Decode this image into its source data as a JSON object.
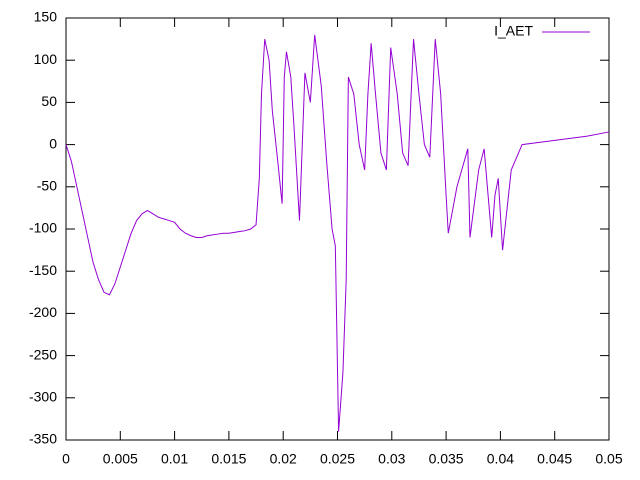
{
  "chart_data": {
    "type": "line",
    "series": [
      {
        "name": "I_AET",
        "color": "#9400d3",
        "x": [
          0,
          0.0005,
          0.001,
          0.0015,
          0.002,
          0.0025,
          0.003,
          0.0035,
          0.004,
          0.0045,
          0.005,
          0.0055,
          0.006,
          0.0065,
          0.007,
          0.0075,
          0.008,
          0.0085,
          0.009,
          0.0095,
          0.01,
          0.0105,
          0.011,
          0.0115,
          0.012,
          0.0125,
          0.013,
          0.0135,
          0.014,
          0.0145,
          0.015,
          0.0155,
          0.016,
          0.0165,
          0.017,
          0.0175,
          0.0178,
          0.018,
          0.0183,
          0.0187,
          0.019,
          0.0195,
          0.0199,
          0.0201,
          0.0203,
          0.0207,
          0.021,
          0.0215,
          0.022,
          0.0225,
          0.0229,
          0.0235,
          0.024,
          0.0245,
          0.0248,
          0.0251,
          0.0255,
          0.0258,
          0.026,
          0.0265,
          0.027,
          0.0275,
          0.0278,
          0.0281,
          0.0285,
          0.029,
          0.0295,
          0.0299,
          0.0305,
          0.031,
          0.0315,
          0.032,
          0.0325,
          0.033,
          0.0335,
          0.034,
          0.0345,
          0.035,
          0.0352,
          0.036,
          0.037,
          0.0372,
          0.038,
          0.0385,
          0.0392,
          0.0395,
          0.0398,
          0.0402,
          0.041,
          0.042,
          0.045,
          0.048,
          0.05
        ],
        "values": [
          0,
          -20,
          -50,
          -80,
          -110,
          -140,
          -160,
          -175,
          -178,
          -165,
          -145,
          -125,
          -105,
          -90,
          -82,
          -78,
          -82,
          -86,
          -88,
          -90,
          -92,
          -100,
          -105,
          -108,
          -110,
          -110,
          -108,
          -107,
          -106,
          -105,
          -105,
          -104,
          -103,
          -102,
          -100,
          -95,
          -40,
          60,
          125,
          100,
          40,
          -20,
          -70,
          80,
          110,
          80,
          20,
          -90,
          85,
          50,
          130,
          70,
          -20,
          -100,
          -120,
          -340,
          -270,
          -160,
          80,
          60,
          0,
          -30,
          60,
          120,
          60,
          -10,
          -30,
          115,
          60,
          -10,
          -25,
          125,
          60,
          0,
          -15,
          125,
          60,
          -60,
          -105,
          -50,
          -5,
          -110,
          -30,
          -5,
          -110,
          -60,
          -40,
          -125,
          -30,
          0,
          5,
          10,
          15
        ]
      }
    ],
    "xlim": [
      0,
      0.05
    ],
    "xticks": [
      0,
      0.005,
      0.01,
      0.015,
      0.02,
      0.025,
      0.03,
      0.035,
      0.04,
      0.045,
      0.05
    ],
    "ylim": [
      -350,
      150
    ],
    "yticks": [
      -350,
      -300,
      -250,
      -200,
      -150,
      -100,
      -50,
      0,
      50,
      100,
      150
    ],
    "grid": false,
    "legend": "top-right"
  }
}
